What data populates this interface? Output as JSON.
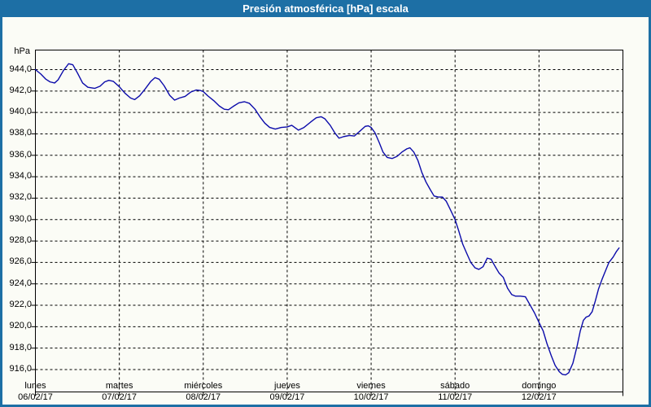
{
  "window": {
    "title": "Presión atmosférica [hPa] escala"
  },
  "chart_data": {
    "type": "line",
    "title": "Presión atmosférica [hPa] escala",
    "unit_label": "hPa",
    "ylabel": "hPa",
    "xlabel": "",
    "grid": "dashed",
    "legend": "none",
    "ylim": [
      913.9,
      945.9
    ],
    "ytick_step": 2,
    "ytick_labels": [
      "944,0",
      "942,0",
      "940,0",
      "938,0",
      "936,0",
      "934,0",
      "932,0",
      "930,0",
      "928,0",
      "926,0",
      "924,0",
      "922,0",
      "920,0",
      "918,0",
      "916,0"
    ],
    "ytick_values": [
      944,
      942,
      940,
      938,
      936,
      934,
      932,
      930,
      928,
      926,
      924,
      922,
      920,
      918,
      916
    ],
    "x_days": [
      {
        "name": "lunes",
        "date": "06/02/17"
      },
      {
        "name": "martes",
        "date": "07/02/17"
      },
      {
        "name": "miércoles",
        "date": "08/02/17"
      },
      {
        "name": "jueves",
        "date": "09/02/17"
      },
      {
        "name": "viernes",
        "date": "10/02/17"
      },
      {
        "name": "sábado",
        "date": "11/02/17"
      },
      {
        "name": "domingo",
        "date": "12/02/17"
      }
    ],
    "x_total_hours": 168,
    "series": [
      {
        "name": "Presión atmosférica",
        "color": "#0b0baa",
        "points_hour_value": [
          [
            0,
            944.0
          ],
          [
            1.5,
            943.6
          ],
          [
            3,
            943.1
          ],
          [
            4.2,
            942.85
          ],
          [
            5.5,
            942.75
          ],
          [
            6.5,
            943.05
          ],
          [
            8,
            943.9
          ],
          [
            9.5,
            944.55
          ],
          [
            10.7,
            944.45
          ],
          [
            12,
            943.7
          ],
          [
            13.5,
            942.75
          ],
          [
            15,
            942.35
          ],
          [
            17,
            942.25
          ],
          [
            18.5,
            942.45
          ],
          [
            19.8,
            942.85
          ],
          [
            21,
            943.0
          ],
          [
            22.3,
            942.9
          ],
          [
            24,
            942.4
          ],
          [
            25.6,
            941.8
          ],
          [
            27.2,
            941.35
          ],
          [
            28.4,
            941.2
          ],
          [
            29.8,
            941.55
          ],
          [
            31.4,
            942.2
          ],
          [
            33,
            942.9
          ],
          [
            34.2,
            943.25
          ],
          [
            35.4,
            943.1
          ],
          [
            36.8,
            942.5
          ],
          [
            38.4,
            941.6
          ],
          [
            39.8,
            941.15
          ],
          [
            41.2,
            941.35
          ],
          [
            42.8,
            941.5
          ],
          [
            44.4,
            941.9
          ],
          [
            46,
            942.1
          ],
          [
            47.2,
            942.05
          ],
          [
            48,
            941.95
          ],
          [
            49.3,
            941.55
          ],
          [
            51,
            941.1
          ],
          [
            52.6,
            940.6
          ],
          [
            54,
            940.3
          ],
          [
            55.2,
            940.25
          ],
          [
            56.5,
            940.55
          ],
          [
            58.2,
            940.9
          ],
          [
            59.8,
            941.0
          ],
          [
            61.2,
            940.85
          ],
          [
            62.8,
            940.3
          ],
          [
            64.2,
            939.6
          ],
          [
            65.6,
            939.0
          ],
          [
            67,
            938.6
          ],
          [
            68.6,
            938.45
          ],
          [
            70.3,
            938.6
          ],
          [
            72,
            938.65
          ],
          [
            73.3,
            938.8
          ],
          [
            75.2,
            938.35
          ],
          [
            76.8,
            938.6
          ],
          [
            78.7,
            939.1
          ],
          [
            80.3,
            939.5
          ],
          [
            81.7,
            939.6
          ],
          [
            82.8,
            939.4
          ],
          [
            84.3,
            938.8
          ],
          [
            85.6,
            938.1
          ],
          [
            86.8,
            937.6
          ],
          [
            88.2,
            937.75
          ],
          [
            89.8,
            937.85
          ],
          [
            91.2,
            937.8
          ],
          [
            92.6,
            938.2
          ],
          [
            94.3,
            938.7
          ],
          [
            95.2,
            938.75
          ],
          [
            96,
            938.6
          ],
          [
            97.1,
            938.1
          ],
          [
            98.3,
            937.2
          ],
          [
            99.4,
            936.3
          ],
          [
            100.6,
            935.8
          ],
          [
            102,
            935.7
          ],
          [
            103.4,
            935.9
          ],
          [
            104.8,
            936.3
          ],
          [
            106.2,
            936.6
          ],
          [
            107.1,
            936.7
          ],
          [
            108.2,
            936.3
          ],
          [
            109.4,
            935.5
          ],
          [
            110.5,
            934.4
          ],
          [
            111.7,
            933.5
          ],
          [
            112.9,
            932.8
          ],
          [
            114,
            932.2
          ],
          [
            115.2,
            932.1
          ],
          [
            116.4,
            932.1
          ],
          [
            117.5,
            931.7
          ],
          [
            118.7,
            930.9
          ],
          [
            120,
            930.0
          ],
          [
            121,
            929.0
          ],
          [
            122.2,
            927.7
          ],
          [
            123.4,
            926.8
          ],
          [
            124.5,
            926.0
          ],
          [
            125.7,
            925.5
          ],
          [
            126.8,
            925.35
          ],
          [
            128,
            925.6
          ],
          [
            129.2,
            926.4
          ],
          [
            130.3,
            926.3
          ],
          [
            131.5,
            925.6
          ],
          [
            132.6,
            925.0
          ],
          [
            133.8,
            924.6
          ],
          [
            135,
            923.6
          ],
          [
            136.2,
            923.0
          ],
          [
            137.3,
            922.85
          ],
          [
            138.7,
            922.85
          ],
          [
            140.1,
            922.8
          ],
          [
            141.5,
            922.0
          ],
          [
            142.7,
            921.3
          ],
          [
            144,
            920.4
          ],
          [
            145.2,
            919.6
          ],
          [
            146.3,
            918.4
          ],
          [
            147.5,
            917.3
          ],
          [
            148.6,
            916.4
          ],
          [
            149.8,
            915.8
          ],
          [
            150.7,
            915.55
          ],
          [
            151.6,
            915.5
          ],
          [
            152.5,
            915.7
          ],
          [
            153.7,
            916.6
          ],
          [
            154.9,
            918.2
          ],
          [
            155.8,
            919.6
          ],
          [
            156.7,
            920.6
          ],
          [
            157.5,
            920.9
          ],
          [
            158.3,
            921.0
          ],
          [
            159.2,
            921.4
          ],
          [
            160.1,
            922.4
          ],
          [
            161,
            923.5
          ],
          [
            162,
            924.4
          ],
          [
            163,
            925.2
          ],
          [
            164,
            926.0
          ],
          [
            165.2,
            926.5
          ],
          [
            166.1,
            927.0
          ],
          [
            166.9,
            927.35
          ]
        ]
      }
    ]
  },
  "colors": {
    "titlebar_bg": "#1d6fa5",
    "titlebar_text": "#ffffff",
    "window_border": "#1d6fa5",
    "chart_bg": "#fbfcf6",
    "grid": "#000000",
    "axis": "#000000",
    "line": "#0b0baa"
  }
}
